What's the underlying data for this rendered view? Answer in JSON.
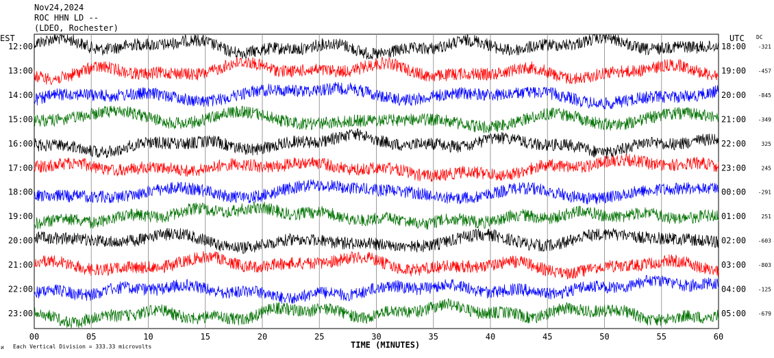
{
  "header": {
    "date": "Nov24,2024",
    "station": "ROC HHN LD --",
    "network": "(LDEO, Rochester)"
  },
  "labels": {
    "left_zone": "EST",
    "right_zone": "UTC",
    "dc_header": "DC",
    "x_axis": "TIME (MINUTES)",
    "scale_note": "Each Vertical Division =  333.33 microvolts",
    "corner_mark": "ᴎ"
  },
  "chart_data": {
    "type": "line",
    "title": "ROC HHN LD --",
    "xlabel": "TIME (MINUTES)",
    "xlim": [
      0,
      60
    ],
    "x_ticks": [
      "00",
      "05",
      "10",
      "15",
      "20",
      "25",
      "30",
      "35",
      "40",
      "45",
      "50",
      "55",
      "60"
    ],
    "grid": "vertical lines every 5 minutes",
    "vertical_division_microvolts": 333.33,
    "trace_colors": [
      "#000000",
      "#ff0000",
      "#0000ff",
      "#007000"
    ],
    "rows": [
      {
        "est": "12:00",
        "utc": "18:00",
        "dc": "-321"
      },
      {
        "est": "13:00",
        "utc": "19:00",
        "dc": "-457"
      },
      {
        "est": "14:00",
        "utc": "20:00",
        "dc": "-845"
      },
      {
        "est": "15:00",
        "utc": "21:00",
        "dc": "-349"
      },
      {
        "est": "16:00",
        "utc": "22:00",
        "dc": "325"
      },
      {
        "est": "17:00",
        "utc": "23:00",
        "dc": "245"
      },
      {
        "est": "18:00",
        "utc": "00:00",
        "dc": "-291"
      },
      {
        "est": "19:00",
        "utc": "01:00",
        "dc": "251"
      },
      {
        "est": "20:00",
        "utc": "02:00",
        "dc": "-603"
      },
      {
        "est": "21:00",
        "utc": "03:00",
        "dc": "-803"
      },
      {
        "est": "22:00",
        "utc": "04:00",
        "dc": "-125"
      },
      {
        "est": "23:00",
        "utc": "05:00",
        "dc": "-679"
      }
    ]
  }
}
